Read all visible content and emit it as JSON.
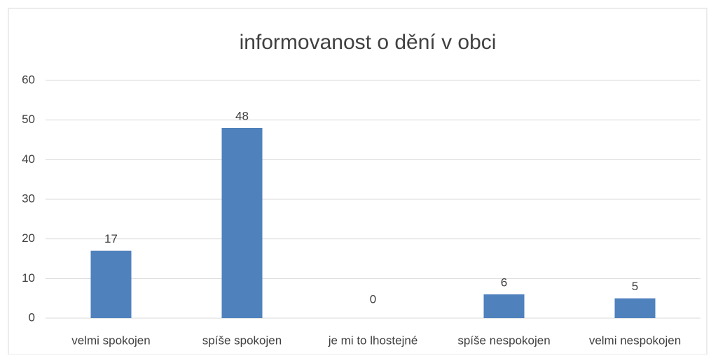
{
  "chart_data": {
    "type": "bar",
    "title": "informovanost o dění v obci",
    "categories": [
      "velmi spokojen",
      "spíše spokojen",
      "je mi to lhostejné",
      "spíše nespokojen",
      "velmi nespokojen"
    ],
    "values": [
      17,
      48,
      0,
      6,
      5
    ],
    "color": "#4f81bd",
    "ylim": [
      0,
      60
    ],
    "yticks": [
      0,
      10,
      20,
      30,
      40,
      50,
      60
    ],
    "grid": true
  }
}
